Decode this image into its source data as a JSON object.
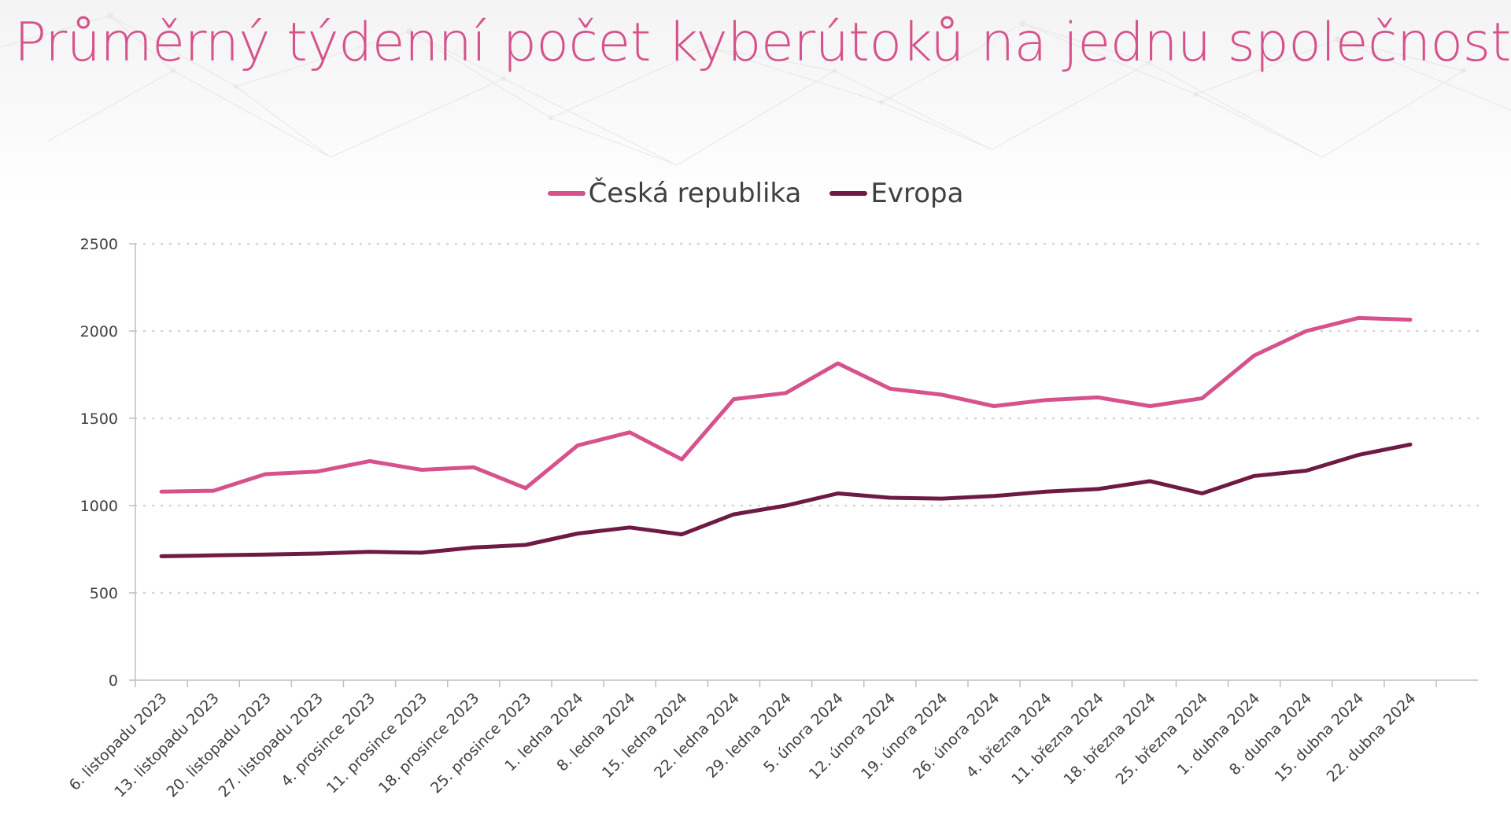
{
  "title": "Průměrný týdenní počet kyberútoků na jednu společnost",
  "colors": {
    "title": "#d6528c",
    "czech": "#d6528c",
    "europe": "#6e1a44",
    "grid": "#d4d4d4",
    "axis": "#bfbfbf"
  },
  "chart_data": {
    "type": "line",
    "title": "Průměrný týdenní počet kyberútoků na jednu společnost",
    "xlabel": "",
    "ylabel": "",
    "ylim": [
      0,
      2500
    ],
    "yticks": [
      "0",
      "500",
      "1000",
      "1500",
      "2000",
      "2500"
    ],
    "grid": "horizontal dotted",
    "legend_position": "top-center",
    "categories": [
      "6. listopadu 2023",
      "13. listopadu 2023",
      "20. listopadu 2023",
      "27. listopadu 2023",
      "4. prosince 2023",
      "11. prosince 2023",
      "18. prosince 2023",
      "25. prosince 2023",
      "1. ledna 2024",
      "8. ledna 2024",
      "15. ledna 2024",
      "22. ledna 2024",
      "29. ledna 2024",
      "5. února 2024",
      "12. února 2024",
      "19. února 2024",
      "26. února 2024",
      "4. března 2024",
      "11. března 2024",
      "18. března 2024",
      "25. března 2024",
      "1. dubna 2024",
      "8. dubna 2024",
      "15. dubna 2024",
      "22. dubna 2024"
    ],
    "series": [
      {
        "name": "Česká republika",
        "color": "#d6528c",
        "values": [
          1080,
          1085,
          1180,
          1195,
          1255,
          1205,
          1220,
          1100,
          1345,
          1420,
          1265,
          1610,
          1645,
          1815,
          1670,
          1635,
          1570,
          1605,
          1620,
          1570,
          1615,
          1860,
          2000,
          2075,
          2065
        ]
      },
      {
        "name": "Evropa",
        "color": "#6e1a44",
        "values": [
          710,
          715,
          720,
          725,
          735,
          730,
          760,
          775,
          840,
          875,
          835,
          950,
          1000,
          1070,
          1045,
          1040,
          1055,
          1080,
          1095,
          1140,
          1070,
          1170,
          1200,
          1290,
          1350
        ]
      }
    ]
  }
}
